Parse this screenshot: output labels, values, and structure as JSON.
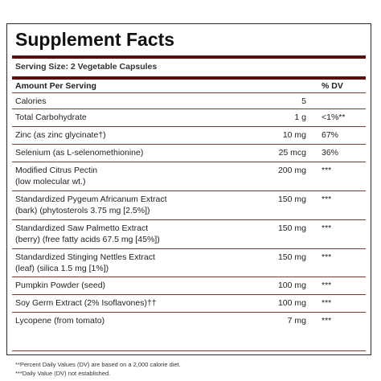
{
  "title": "Supplement Facts",
  "serving_size": "Serving Size: 2 Vegetable Capsules",
  "header": {
    "amount_label": "Amount Per Serving",
    "dv_label": "% DV"
  },
  "rows": [
    {
      "name": "Calories",
      "amount": "5",
      "dv": ""
    },
    {
      "name": "Total Carbohydrate",
      "amount": "1 g",
      "dv": "<1%**"
    },
    {
      "name": "Zinc (as zinc glycinate†)",
      "amount": "10 mg",
      "dv": "67%"
    },
    {
      "name": "Selenium (as L-selenomethionine)",
      "amount": "25 mcg",
      "dv": "36%"
    },
    {
      "name": "Modified Citrus Pectin\n(low molecular wt.)",
      "amount": "200 mg",
      "dv": "***"
    },
    {
      "name": "Standardized Pygeum Africanum Extract\n(bark) (phytosterols 3.75 mg [2.5%])",
      "amount": "150 mg",
      "dv": "***"
    },
    {
      "name": "Standardized Saw Palmetto Extract\n(berry) (free fatty acids 67.5 mg [45%])",
      "amount": "150 mg",
      "dv": "***"
    },
    {
      "name": "Standardized Stinging Nettles Extract\n(leaf) (silica 1.5 mg [1%])",
      "amount": "150 mg",
      "dv": "***"
    },
    {
      "name": "Pumpkin Powder (seed)",
      "amount": "100 mg",
      "dv": "***"
    },
    {
      "name": "Soy Germ Extract (2% Isoflavones)††",
      "amount": "100 mg",
      "dv": "***"
    },
    {
      "name": "Lycopene (from tomato)",
      "amount": "7 mg",
      "dv": "***"
    }
  ],
  "footnotes": [
    "**Percent Daily Values (DV) are based on a 2,000 calorie diet.",
    "***Daily Value (DV) not established."
  ]
}
